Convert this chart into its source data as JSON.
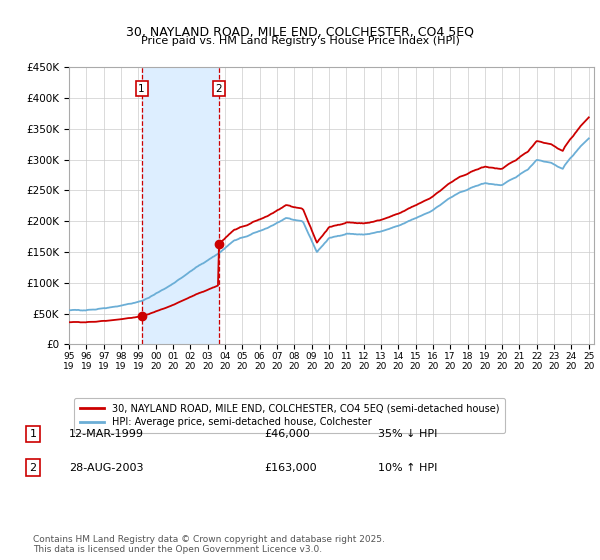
{
  "title": "30, NAYLAND ROAD, MILE END, COLCHESTER, CO4 5EQ",
  "subtitle": "Price paid vs. HM Land Registry's House Price Index (HPI)",
  "ylim": [
    0,
    450000
  ],
  "yticks": [
    0,
    50000,
    100000,
    150000,
    200000,
    250000,
    300000,
    350000,
    400000,
    450000
  ],
  "ytick_labels": [
    "£0",
    "£50K",
    "£100K",
    "£150K",
    "£200K",
    "£250K",
    "£300K",
    "£350K",
    "£400K",
    "£450K"
  ],
  "sale1_date_x": 1999.19,
  "sale1_price": 46000,
  "sale2_date_x": 2003.65,
  "sale2_price": 163000,
  "hpi_color": "#6baed6",
  "price_color": "#cc0000",
  "shade_color": "#ddeeff",
  "annotation_box_color": "#cc0000",
  "footnote": "Contains HM Land Registry data © Crown copyright and database right 2025.\nThis data is licensed under the Open Government Licence v3.0.",
  "legend1": "30, NAYLAND ROAD, MILE END, COLCHESTER, CO4 5EQ (semi-detached house)",
  "legend2": "HPI: Average price, semi-detached house, Colchester",
  "table_row1": [
    "1",
    "12-MAR-1999",
    "£46,000",
    "35% ↓ HPI"
  ],
  "table_row2": [
    "2",
    "28-AUG-2003",
    "£163,000",
    "10% ↑ HPI"
  ],
  "xlim_start": 1995.0,
  "xlim_end": 2025.3,
  "hpi_anchors_t": [
    1995.0,
    1996.5,
    1998.0,
    1999.2,
    2000.5,
    2001.5,
    2002.5,
    2003.65,
    2004.5,
    2005.5,
    2006.5,
    2007.5,
    2008.5,
    2009.3,
    2010.0,
    2011.0,
    2012.0,
    2013.0,
    2014.0,
    2015.0,
    2016.0,
    2017.0,
    2018.0,
    2019.0,
    2020.0,
    2020.8,
    2021.5,
    2022.0,
    2022.8,
    2023.5,
    2024.0,
    2025.0
  ],
  "hpi_anchors_v": [
    55000,
    57000,
    63000,
    70000,
    90000,
    108000,
    128000,
    148000,
    168000,
    178000,
    190000,
    204000,
    200000,
    150000,
    172000,
    180000,
    178000,
    183000,
    192000,
    205000,
    218000,
    238000,
    252000,
    262000,
    258000,
    272000,
    285000,
    300000,
    295000,
    285000,
    305000,
    335000
  ]
}
